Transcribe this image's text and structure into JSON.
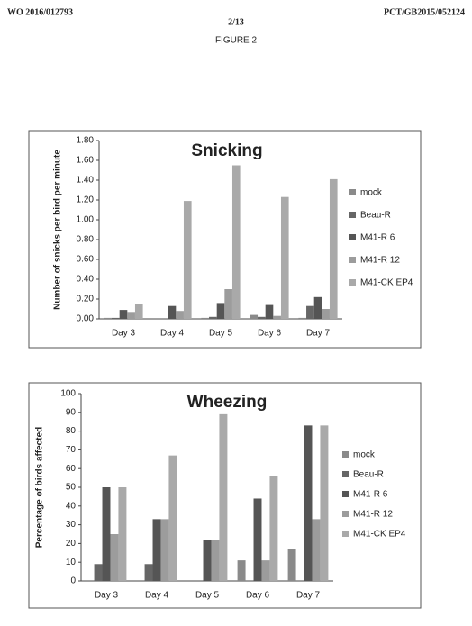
{
  "header": {
    "left": "WO 2016/012793",
    "page": "2/13",
    "right": "PCT/GB2015/052124",
    "figure": "FIGURE 2"
  },
  "chart_data": [
    {
      "type": "bar",
      "title": "Snicking",
      "y_label": "Number of snicks per bird per minute",
      "categories": [
        "Day 3",
        "Day 4",
        "Day 5",
        "Day 6",
        "Day 7"
      ],
      "series": [
        {
          "name": "mock",
          "color": "#8a8a8a",
          "values": [
            0.01,
            0,
            0.01,
            0.04,
            0.01
          ]
        },
        {
          "name": "Beau-R",
          "color": "#666666",
          "values": [
            0.01,
            0,
            0.02,
            0.02,
            0.13
          ]
        },
        {
          "name": "M41-R 6",
          "color": "#555555",
          "values": [
            0.09,
            0.13,
            0.16,
            0.14,
            0.22
          ]
        },
        {
          "name": "M41-R 12",
          "color": "#9c9c9c",
          "values": [
            0.07,
            0.08,
            0.3,
            0.03,
            0.1
          ]
        },
        {
          "name": "M41-CK EP4",
          "color": "#a9a9a9",
          "values": [
            0.15,
            1.19,
            1.55,
            1.23,
            1.41
          ]
        }
      ],
      "ylim": [
        0,
        1.8
      ],
      "yticks": [
        {
          "value": 0,
          "label": "0.00"
        },
        {
          "value": 0.2,
          "label": "0.20"
        },
        {
          "value": 0.4,
          "label": "0.40"
        },
        {
          "value": 0.6,
          "label": "0.60"
        },
        {
          "value": 0.8,
          "label": "0.80"
        },
        {
          "value": 1,
          "label": "1.00"
        },
        {
          "value": 1.2,
          "label": "1.20"
        },
        {
          "value": 1.4,
          "label": "1.40"
        },
        {
          "value": 1.6,
          "label": "1.60"
        },
        {
          "value": 1.8,
          "label": "1.80"
        }
      ],
      "legend": "right"
    },
    {
      "type": "bar",
      "title": "Wheezing",
      "y_label": "Percentage of birds affected",
      "categories": [
        "Day 3",
        "Day 4",
        "Day 5",
        "Day 6",
        "Day 7"
      ],
      "series": [
        {
          "name": "mock",
          "color": "#8a8a8a",
          "values": [
            0,
            0,
            0,
            11,
            17
          ]
        },
        {
          "name": "Beau-R",
          "color": "#666666",
          "values": [
            9,
            9,
            0,
            0,
            0
          ]
        },
        {
          "name": "M41-R 6",
          "color": "#555555",
          "values": [
            50,
            33,
            22,
            44,
            83
          ]
        },
        {
          "name": "M41-R 12",
          "color": "#9c9c9c",
          "values": [
            25,
            33,
            22,
            11,
            33
          ]
        },
        {
          "name": "M41-CK EP4",
          "color": "#a9a9a9",
          "values": [
            50,
            67,
            89,
            56,
            83
          ]
        }
      ],
      "ylim": [
        0,
        100
      ],
      "yticks": [
        0,
        10,
        20,
        30,
        40,
        50,
        60,
        70,
        80,
        90,
        100
      ],
      "legend": "right"
    }
  ]
}
